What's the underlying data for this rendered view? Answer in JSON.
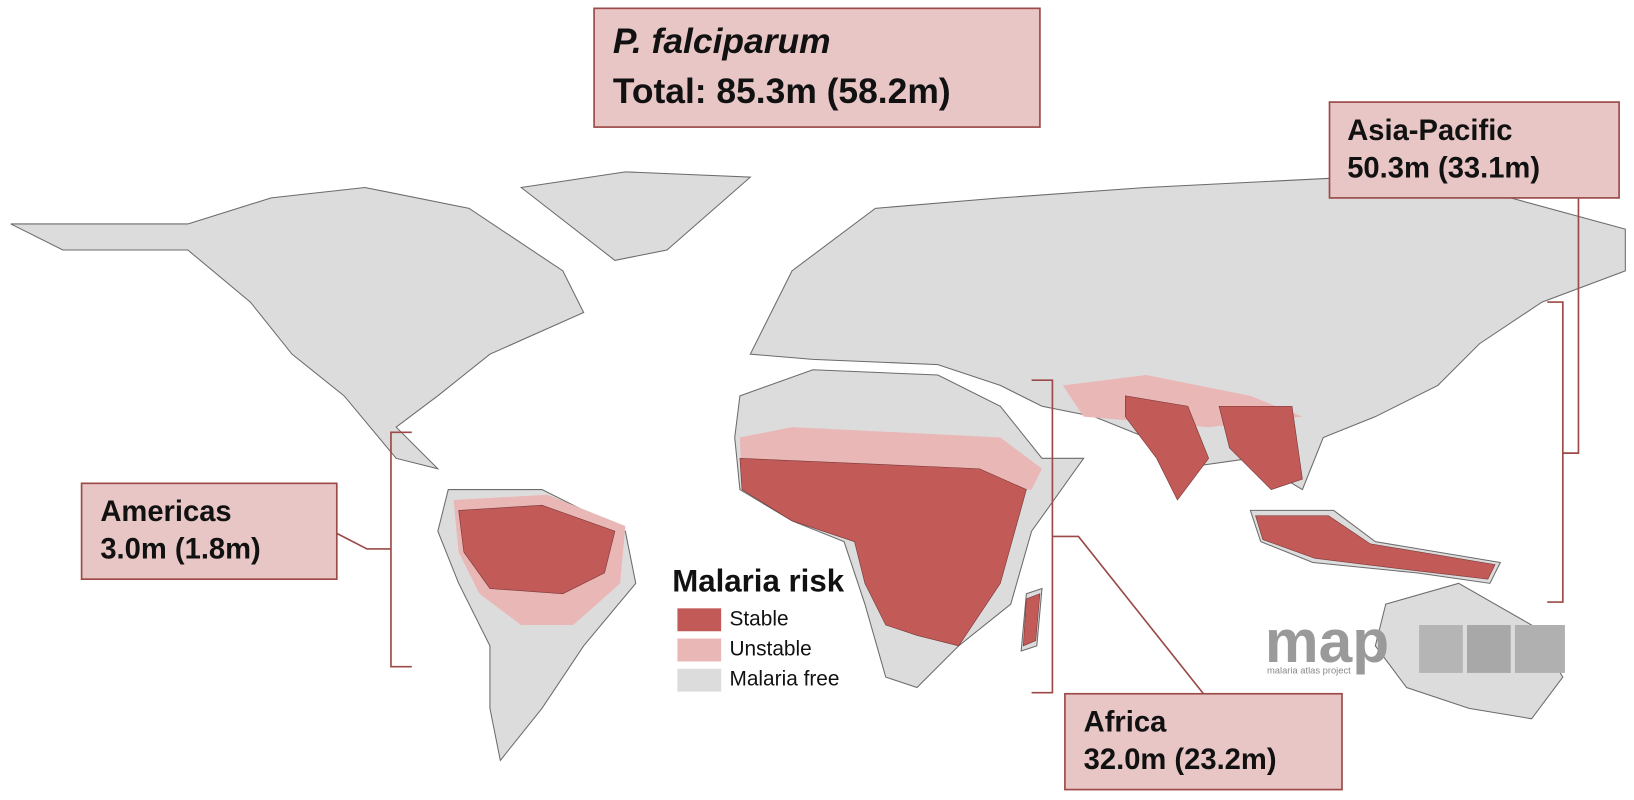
{
  "title": {
    "species": "P. falciparum",
    "total": "Total: 85.3m (58.2m)"
  },
  "regions": [
    {
      "name": "Asia-Pacific",
      "value": "50.3m (33.1m)"
    },
    {
      "name": "Americas",
      "value": "3.0m (1.8m)"
    },
    {
      "name": "Africa",
      "value": "32.0m (23.2m)"
    }
  ],
  "legend": {
    "title": "Malaria risk",
    "items": [
      "Stable",
      "Unstable",
      "Malaria free"
    ]
  },
  "logo": {
    "name": "map",
    "subtitle": "malaria atlas project"
  }
}
